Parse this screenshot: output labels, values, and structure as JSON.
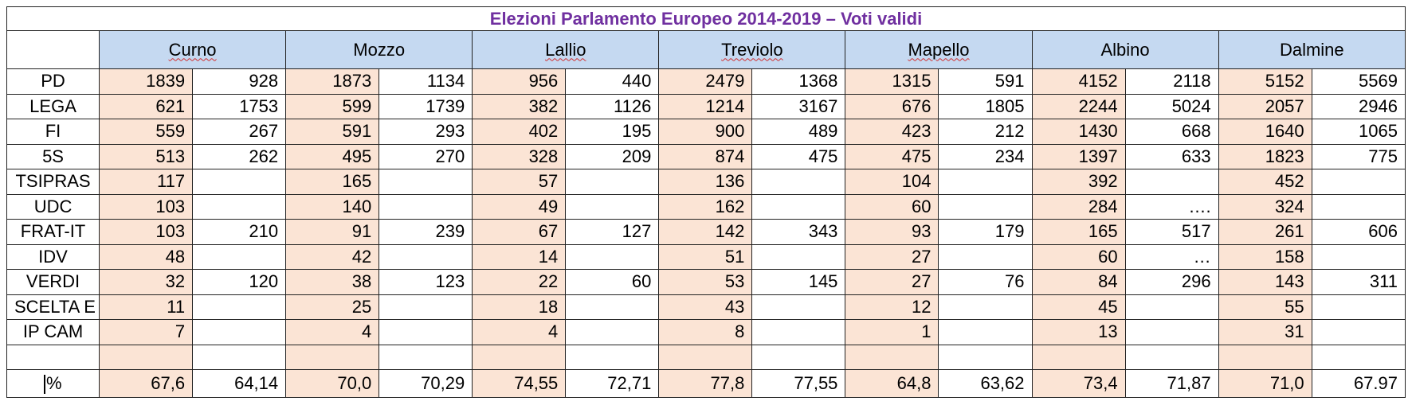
{
  "title": "Elezioni Parlamento Europeo 2014-2019 – Voti validi",
  "colors": {
    "title": "#7030a0",
    "header_fill": "#c5d9f1",
    "col2014_fill": "#fbe4d5"
  },
  "towns": [
    {
      "name": "Curno",
      "squiggle": true
    },
    {
      "name": "Mozzo",
      "squiggle": false
    },
    {
      "name": "Lallio",
      "squiggle": true
    },
    {
      "name": "Treviolo",
      "squiggle": true
    },
    {
      "name": "Mapello",
      "squiggle": true
    },
    {
      "name": "Albino",
      "squiggle": false
    },
    {
      "name": "Dalmine",
      "squiggle": false
    }
  ],
  "rows": [
    {
      "party": "PD",
      "values": [
        [
          "1839",
          "928"
        ],
        [
          "1873",
          "1134"
        ],
        [
          "956",
          "440"
        ],
        [
          "2479",
          "1368"
        ],
        [
          "1315",
          "591"
        ],
        [
          "4152",
          "2118"
        ],
        [
          "5152",
          "5569"
        ]
      ]
    },
    {
      "party": "LEGA",
      "values": [
        [
          "621",
          "1753"
        ],
        [
          "599",
          "1739"
        ],
        [
          "382",
          "1126"
        ],
        [
          "1214",
          "3167"
        ],
        [
          "676",
          "1805"
        ],
        [
          "2244",
          "5024"
        ],
        [
          "2057",
          "2946"
        ]
      ]
    },
    {
      "party": "FI",
      "values": [
        [
          "559",
          "267"
        ],
        [
          "591",
          "293"
        ],
        [
          "402",
          "195"
        ],
        [
          "900",
          "489"
        ],
        [
          "423",
          "212"
        ],
        [
          "1430",
          "668"
        ],
        [
          "1640",
          "1065"
        ]
      ]
    },
    {
      "party": "5S",
      "values": [
        [
          "513",
          "262"
        ],
        [
          "495",
          "270"
        ],
        [
          "328",
          "209"
        ],
        [
          "874",
          "475"
        ],
        [
          "475",
          "234"
        ],
        [
          "1397",
          "633"
        ],
        [
          "1823",
          "775"
        ]
      ]
    },
    {
      "party": "TSIPRAS",
      "values": [
        [
          "117",
          ""
        ],
        [
          "165",
          ""
        ],
        [
          "57",
          ""
        ],
        [
          "136",
          ""
        ],
        [
          "104",
          ""
        ],
        [
          "392",
          ""
        ],
        [
          "452",
          ""
        ]
      ]
    },
    {
      "party": "UDC",
      "values": [
        [
          "103",
          ""
        ],
        [
          "140",
          ""
        ],
        [
          "49",
          ""
        ],
        [
          "162",
          ""
        ],
        [
          "60",
          ""
        ],
        [
          "284",
          "…."
        ],
        [
          "324",
          ""
        ]
      ]
    },
    {
      "party": "FRAT-IT",
      "values": [
        [
          "103",
          "210"
        ],
        [
          "91",
          "239"
        ],
        [
          "67",
          "127"
        ],
        [
          "142",
          "343"
        ],
        [
          "93",
          "179"
        ],
        [
          "165",
          "517"
        ],
        [
          "261",
          "606"
        ]
      ]
    },
    {
      "party": "IDV",
      "values": [
        [
          "48",
          ""
        ],
        [
          "42",
          ""
        ],
        [
          "14",
          ""
        ],
        [
          "51",
          ""
        ],
        [
          "27",
          ""
        ],
        [
          "60",
          "…"
        ],
        [
          "158",
          ""
        ]
      ]
    },
    {
      "party": "VERDI",
      "values": [
        [
          "32",
          "120"
        ],
        [
          "38",
          "123"
        ],
        [
          "22",
          "60"
        ],
        [
          "53",
          "145"
        ],
        [
          "27",
          "76"
        ],
        [
          "84",
          "296"
        ],
        [
          "143",
          "311"
        ]
      ]
    },
    {
      "party": "SCELTA E",
      "values": [
        [
          "11",
          ""
        ],
        [
          "25",
          ""
        ],
        [
          "18",
          ""
        ],
        [
          "43",
          ""
        ],
        [
          "12",
          ""
        ],
        [
          "45",
          ""
        ],
        [
          "55",
          ""
        ]
      ]
    },
    {
      "party": "IP CAM",
      "values": [
        [
          "7",
          ""
        ],
        [
          "4",
          ""
        ],
        [
          "4",
          ""
        ],
        [
          "8",
          ""
        ],
        [
          "1",
          ""
        ],
        [
          "13",
          ""
        ],
        [
          "31",
          ""
        ]
      ]
    }
  ],
  "percent": {
    "label": "%",
    "values": [
      [
        "67,6",
        "64,14"
      ],
      [
        "70,0",
        "70,29"
      ],
      [
        "74,55",
        "72,71"
      ],
      [
        "77,8",
        "77,55"
      ],
      [
        "64,8",
        "63,62"
      ],
      [
        "73,4",
        "71,87"
      ],
      [
        "71,0",
        "67.97"
      ]
    ]
  }
}
